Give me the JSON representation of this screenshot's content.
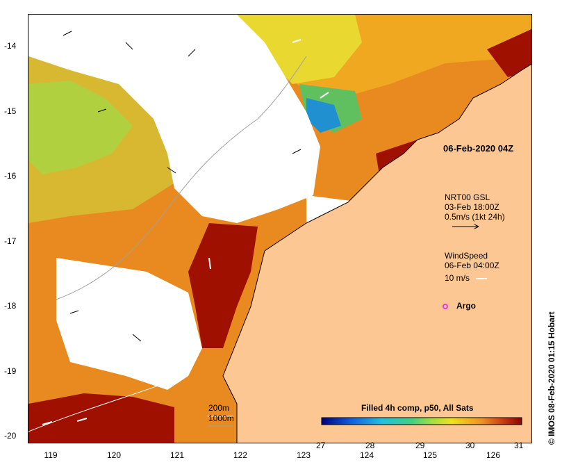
{
  "map": {
    "date_label": "06-Feb-2020 04Z",
    "current_source": "NRT00 GSL",
    "current_time": "03-Feb 18:00Z",
    "current_scale": "0.5m/s (1kt 24h)",
    "wind_title": "WindSpeed",
    "wind_time": "06-Feb 04:00Z",
    "wind_scale": "10 m/s",
    "argo_label": "Argo",
    "bathy_200": "200m",
    "bathy_1000": "1000m",
    "colorbar_title": "Filled 4h comp, p50, All Sats",
    "colorbar_ticks": [
      "27",
      "28",
      "29",
      "30",
      "31"
    ],
    "credit": "© IMOS 08-Feb-2020 01:15 Hobart",
    "lat_labels": [
      "-14",
      "-15",
      "-16",
      "-17",
      "-18",
      "-19",
      "-20"
    ],
    "lon_labels": [
      "119",
      "120",
      "121",
      "122",
      "123",
      "124",
      "125",
      "126"
    ]
  },
  "colors": {
    "land": "#fdc794",
    "cloud": "#ffffff",
    "sst_hot": "#a01000",
    "sst_warm": "#d86010",
    "sst_mid": "#f0a020",
    "sst_cool": "#f0e030",
    "sst_green": "#80d040",
    "sst_blue": "#1040c0",
    "argo": "#e040e0",
    "coast": "#000000",
    "bathy": "#a0a0a0"
  }
}
